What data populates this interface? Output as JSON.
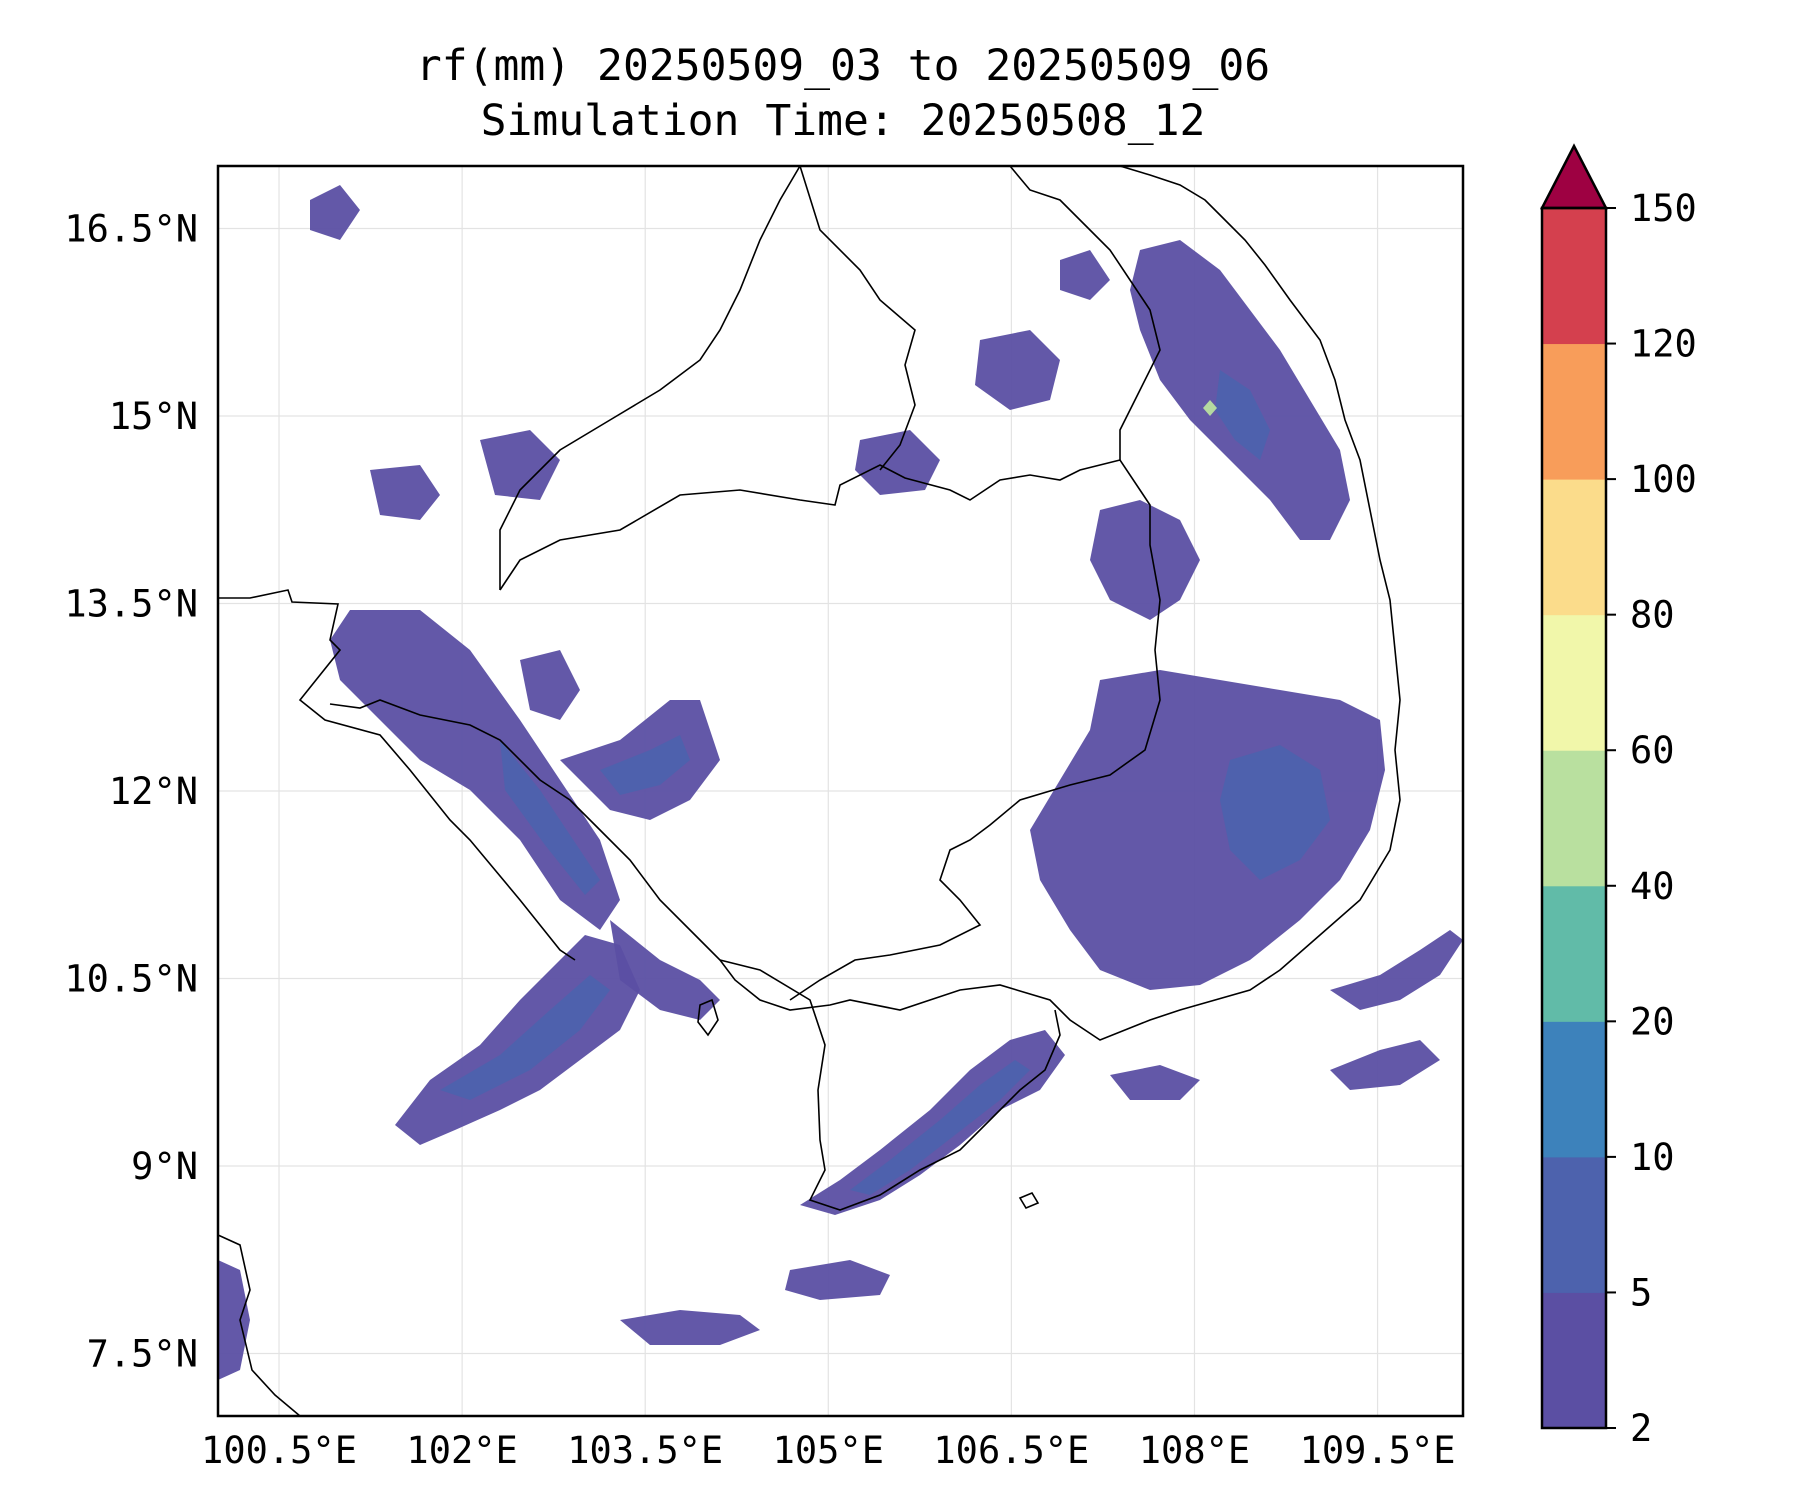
{
  "title": {
    "line1": "rf(mm) 20250509_03 to 20250509_06",
    "line2": "Simulation Time: 20250508_12"
  },
  "map": {
    "lon_range": [
      100.0,
      110.2
    ],
    "lat_range": [
      7.0,
      17.0
    ],
    "lon_ticks": [
      {
        "value": 100.5,
        "label": "100.5°E"
      },
      {
        "value": 102.0,
        "label": "102°E"
      },
      {
        "value": 103.5,
        "label": "103.5°E"
      },
      {
        "value": 105.0,
        "label": "105°E"
      },
      {
        "value": 106.5,
        "label": "106.5°E"
      },
      {
        "value": 108.0,
        "label": "108°E"
      },
      {
        "value": 109.5,
        "label": "109.5°E"
      }
    ],
    "lat_ticks": [
      {
        "value": 16.5,
        "label": "16.5°N"
      },
      {
        "value": 15.0,
        "label": "15°N"
      },
      {
        "value": 13.5,
        "label": "13.5°N"
      },
      {
        "value": 12.0,
        "label": "12°N"
      },
      {
        "value": 10.5,
        "label": "10.5°N"
      },
      {
        "value": 9.0,
        "label": "9°N"
      },
      {
        "value": 7.5,
        "label": "7.5°N"
      }
    ],
    "grid": true,
    "coastline_color": "#000000"
  },
  "colorbar": {
    "labels": [
      "2",
      "5",
      "10",
      "20",
      "40",
      "60",
      "80",
      "100",
      "120",
      "150"
    ],
    "colors": [
      "#5b4fa3",
      "#4d62ad",
      "#3d82bb",
      "#61bba8",
      "#b9e09f",
      "#f1f7aa",
      "#fbdc8b",
      "#f89d5a",
      "#d4404e"
    ],
    "extend_color": "#9e0142",
    "extend": "max"
  },
  "rain_areas": [
    {
      "id": "gulf-west-band",
      "level": 0
    },
    {
      "id": "gulf-west-core",
      "level": 1
    },
    {
      "id": "cardamom-band",
      "level": 0
    },
    {
      "id": "cardamom-core",
      "level": 1
    },
    {
      "id": "camau-band",
      "level": 0
    },
    {
      "id": "camau-core",
      "level": 1
    },
    {
      "id": "highlands-east",
      "level": 0
    },
    {
      "id": "highlands-core",
      "level": 1
    },
    {
      "id": "annam-north",
      "level": 0
    },
    {
      "id": "annam-core",
      "level": 1
    },
    {
      "id": "laos-central",
      "level": 0
    },
    {
      "id": "thai-northwest",
      "level": 0
    },
    {
      "id": "scs-offshore",
      "level": 0
    },
    {
      "id": "gulf-south",
      "level": 0
    },
    {
      "id": "local-peak",
      "level": 4
    }
  ]
}
